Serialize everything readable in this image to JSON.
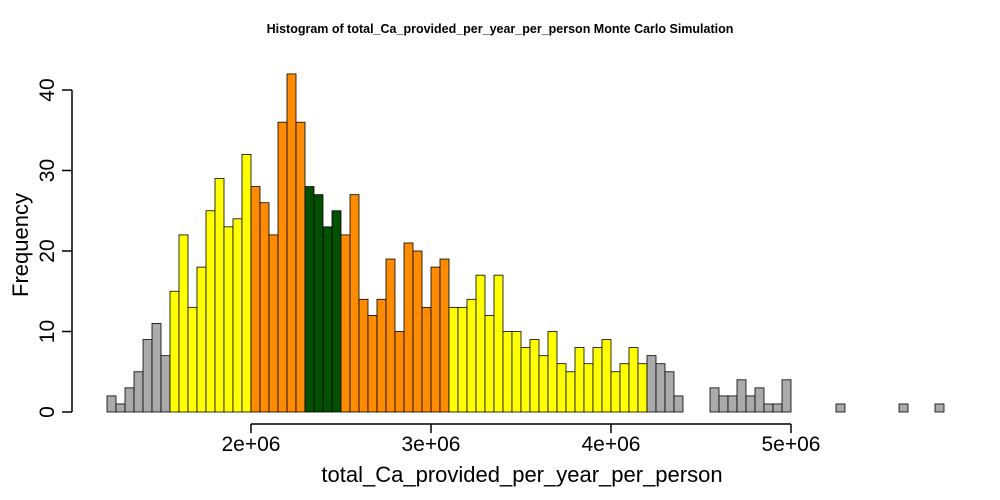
{
  "chart_data": {
    "type": "bar",
    "title": "Histogram of  total_Ca_provided_per_year_per_person  Monte Carlo Simulation",
    "xlabel": "total_Ca_provided_per_year_per_person",
    "ylabel": "Frequency",
    "xlim": [
      1200000,
      5800000
    ],
    "ylim": [
      0,
      42
    ],
    "x_ticks": [
      {
        "value": 2000000,
        "label": "2e+06"
      },
      {
        "value": 3000000,
        "label": "3e+06"
      },
      {
        "value": 4000000,
        "label": "4e+06"
      },
      {
        "value": 5000000,
        "label": "5e+06"
      }
    ],
    "y_ticks": [
      {
        "value": 0,
        "label": "0"
      },
      {
        "value": 10,
        "label": "10"
      },
      {
        "value": 20,
        "label": "20"
      },
      {
        "value": 30,
        "label": "30"
      },
      {
        "value": 40,
        "label": "40"
      }
    ],
    "bin_start": 1200000,
    "bin_width": 50000,
    "values": [
      2,
      1,
      3,
      5,
      9,
      11,
      7,
      15,
      22,
      13,
      18,
      25,
      29,
      23,
      24,
      32,
      28,
      26,
      22,
      36,
      42,
      36,
      28,
      27,
      23,
      25,
      22,
      27,
      14,
      12,
      14,
      19,
      10,
      21,
      20,
      13,
      18,
      19,
      13,
      13,
      14,
      17,
      12,
      17,
      10,
      10,
      8,
      9,
      7,
      10,
      6,
      5,
      8,
      6,
      8,
      9,
      5,
      6,
      8,
      6,
      7,
      6,
      5,
      2,
      0,
      0,
      0,
      3,
      2,
      2,
      4,
      2,
      3,
      1,
      1,
      4,
      0,
      0,
      0,
      0,
      0,
      1,
      0,
      0,
      0,
      0,
      0,
      0,
      1,
      0,
      0,
      0,
      1
    ],
    "colors": {
      "gray": "#AAAAAA",
      "yellow": "#FFFF00",
      "orange": "#FF8C00",
      "green": "#005000"
    },
    "color_bands": [
      {
        "from": 1200000,
        "to": 1550000,
        "color": "gray"
      },
      {
        "from": 1550000,
        "to": 2000000,
        "color": "yellow"
      },
      {
        "from": 2000000,
        "to": 2300000,
        "color": "orange"
      },
      {
        "from": 2300000,
        "to": 2500000,
        "color": "green"
      },
      {
        "from": 2500000,
        "to": 3100000,
        "color": "orange"
      },
      {
        "from": 3100000,
        "to": 4200000,
        "color": "yellow"
      },
      {
        "from": 4200000,
        "to": 5850000,
        "color": "gray"
      }
    ]
  }
}
